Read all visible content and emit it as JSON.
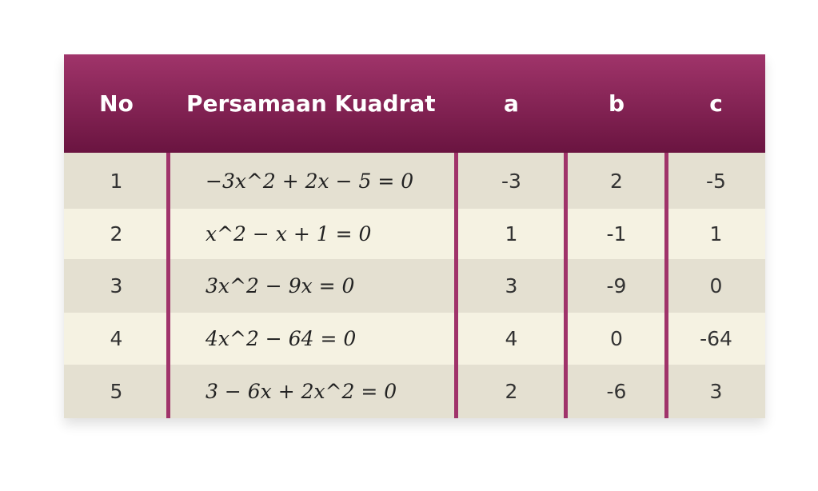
{
  "table": {
    "headers": [
      "No",
      "Persamaan Kuadrat",
      "a",
      "b",
      "c"
    ],
    "rows": [
      {
        "no": "1",
        "eq": "−3x^2 + 2x − 5 = 0",
        "a": "-3",
        "b": "2",
        "c": "-5"
      },
      {
        "no": "2",
        "eq": "x^2 − x + 1 = 0",
        "a": "1",
        "b": "-1",
        "c": "1"
      },
      {
        "no": "3",
        "eq": "3x^2 − 9x = 0",
        "a": "3",
        "b": "-9",
        "c": "0"
      },
      {
        "no": "4",
        "eq": "4x^2 − 64 = 0",
        "a": "4",
        "b": "0",
        "c": "-64"
      },
      {
        "no": "5",
        "eq": "3 − 6x + 2x^2 = 0",
        "a": "2",
        "b": "-6",
        "c": "3"
      }
    ]
  },
  "colors": {
    "header_top": "#a0346a",
    "header_bottom": "#6a1440",
    "divider": "#a0336a",
    "row_odd": "#e4e0d1",
    "row_even": "#f5f2e2"
  }
}
